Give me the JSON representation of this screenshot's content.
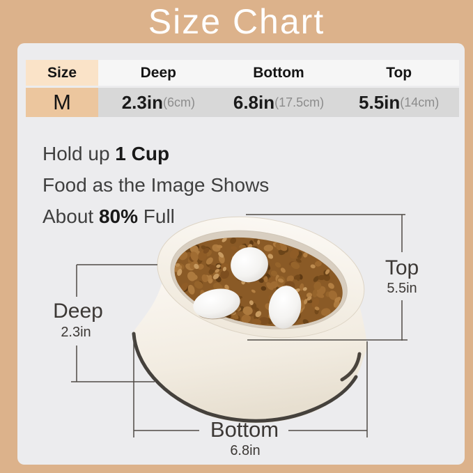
{
  "title": "Size Chart",
  "table": {
    "headers": [
      "Size",
      "Deep",
      "Bottom",
      "Top"
    ],
    "row": {
      "size": "M",
      "cells": [
        {
          "in": "2.3in",
          "cm": "(6cm)"
        },
        {
          "in": "6.8in",
          "cm": "(17.5cm)"
        },
        {
          "in": "5.5in",
          "cm": "(14cm)"
        }
      ]
    }
  },
  "description": {
    "line1_pre": "Hold up ",
    "line1_bold": "1 Cup",
    "line2": "Food as the Image Shows",
    "line3_pre": "About ",
    "line3_bold": "80%",
    "line3_post": " Full"
  },
  "dimensions": {
    "top": {
      "label": "Top",
      "value": "5.5in"
    },
    "deep": {
      "label": "Deep",
      "value": "2.3in"
    },
    "bottom": {
      "label": "Bottom",
      "value": "6.8in"
    }
  },
  "colors": {
    "frame_tan": "#dcb28b",
    "panel_gray": "#ececee",
    "header_peach": "#fae3c8",
    "size_m_peach": "#ecc69e",
    "row_gray": "#d8d8d8",
    "bowl_cream": "#f6f1e9",
    "base_dark": "#45413c",
    "kibble_brown": "#8a5a26"
  }
}
